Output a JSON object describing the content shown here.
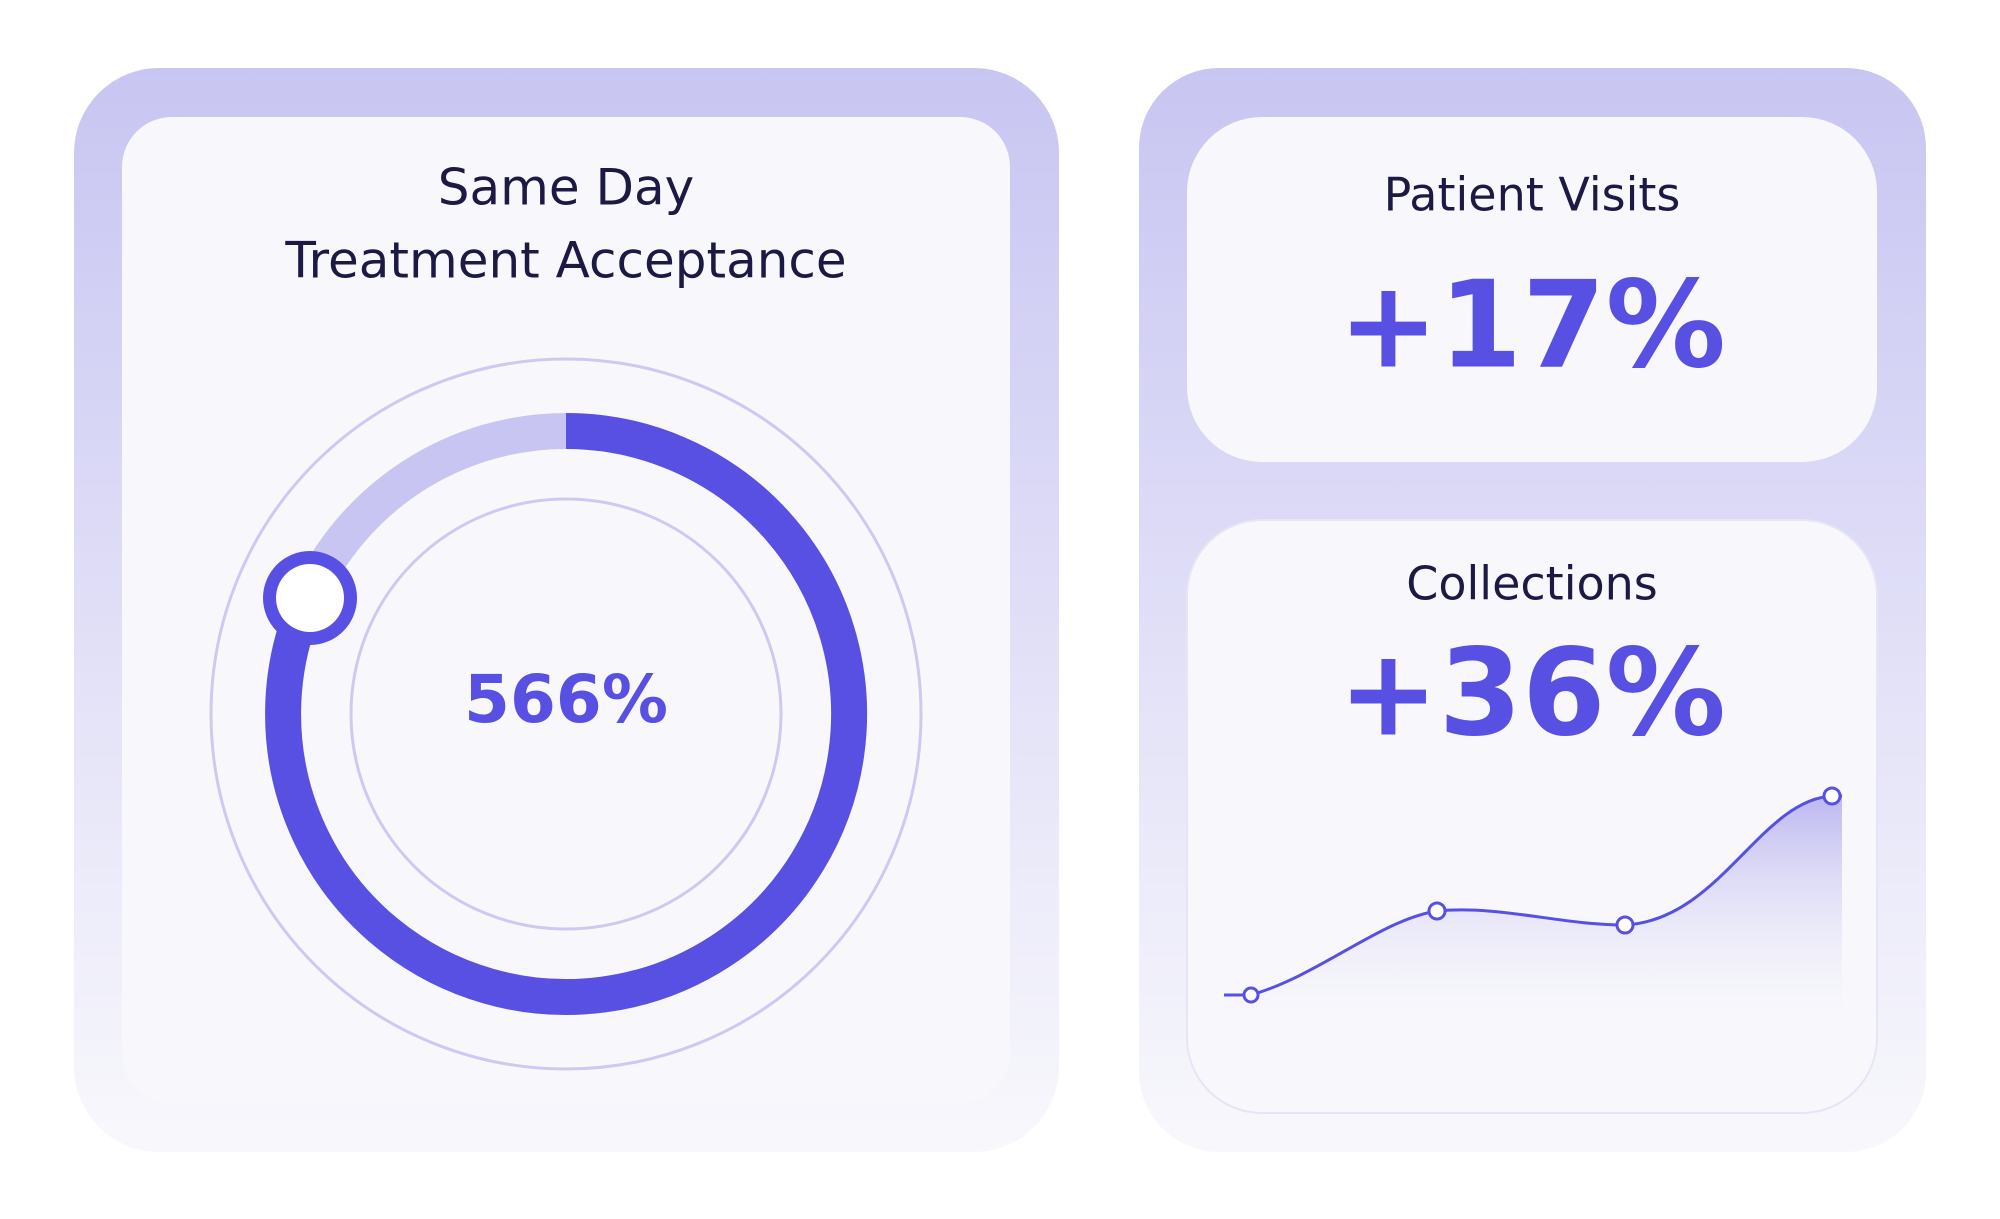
{
  "treatment_card": {
    "title_lines": [
      "Same Day",
      "Treatment Acceptance"
    ],
    "value": "566%"
  },
  "visits_card": {
    "title": "Patient Visits",
    "value": "+17%"
  },
  "collections_card": {
    "title": "Collections",
    "value": "+36%"
  }
}
